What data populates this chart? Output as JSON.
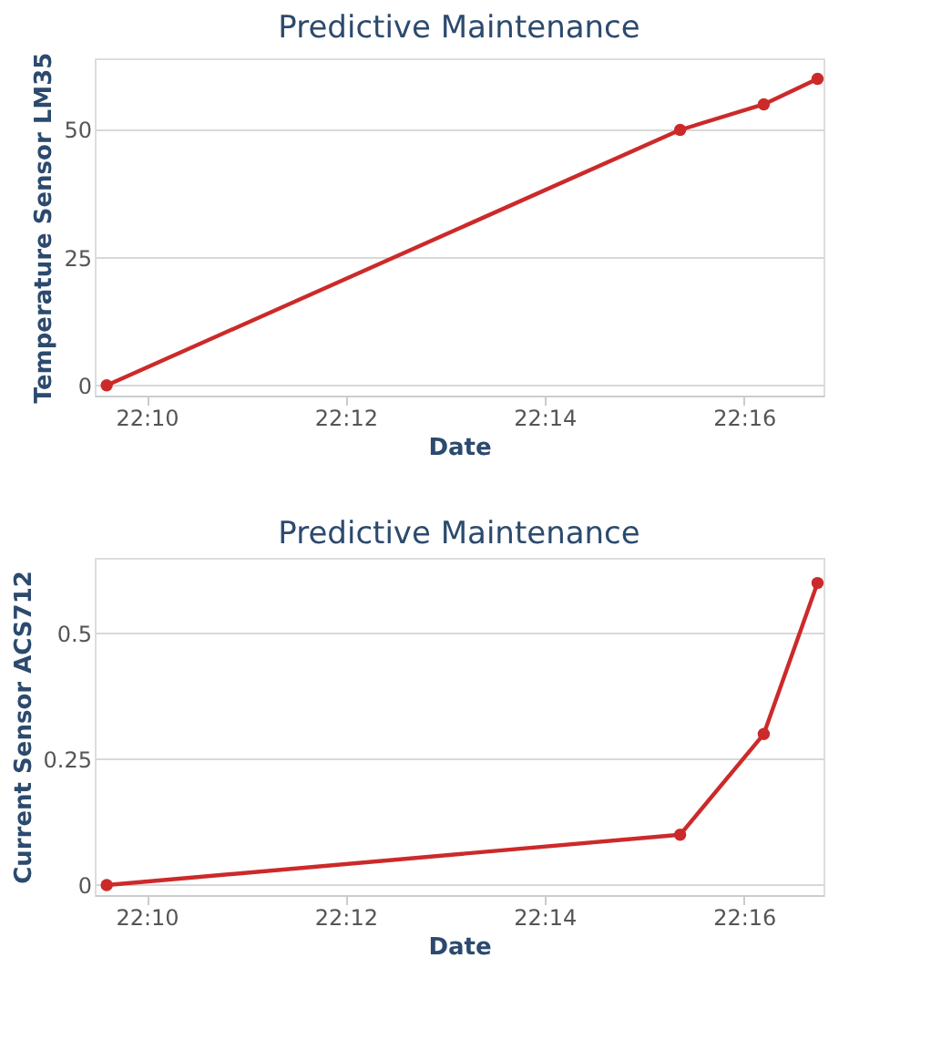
{
  "chart_data": [
    {
      "type": "line",
      "title": "Predictive Maintenance",
      "xlabel": "Date",
      "ylabel": "Temperature Sensor LM35",
      "x": [
        22.16,
        22.256,
        22.27,
        22.279
      ],
      "series": [
        {
          "color": "#cc2a2a",
          "values": [
            0,
            50,
            55,
            60
          ]
        }
      ],
      "xlim": [
        22.158,
        22.28
      ],
      "xticks": [
        {
          "value": 22.1667,
          "label": "22:10"
        },
        {
          "value": 22.2,
          "label": "22:12"
        },
        {
          "value": 22.2333,
          "label": "22:14"
        },
        {
          "value": 22.2667,
          "label": "22:16"
        }
      ],
      "ylim": [
        -2,
        64
      ],
      "yticks": [
        0,
        25,
        50
      ],
      "grid": "y",
      "marker": "circle",
      "line_style": "solid"
    },
    {
      "type": "line",
      "title": "Predictive Maintenance",
      "xlabel": "Date",
      "ylabel": "Current Sensor ACS712",
      "x": [
        22.16,
        22.256,
        22.27,
        22.279
      ],
      "series": [
        {
          "color": "#cc2a2a",
          "values": [
            0,
            0.1,
            0.3,
            0.6
          ]
        }
      ],
      "xlim": [
        22.158,
        22.28
      ],
      "xticks": [
        {
          "value": 22.1667,
          "label": "22:10"
        },
        {
          "value": 22.2,
          "label": "22:12"
        },
        {
          "value": 22.2333,
          "label": "22:14"
        },
        {
          "value": 22.2667,
          "label": "22:16"
        }
      ],
      "ylim": [
        -0.02,
        0.65
      ],
      "yticks": [
        0,
        0.25,
        0.5
      ],
      "grid": "y",
      "marker": "circle",
      "line_style": "solid"
    }
  ]
}
